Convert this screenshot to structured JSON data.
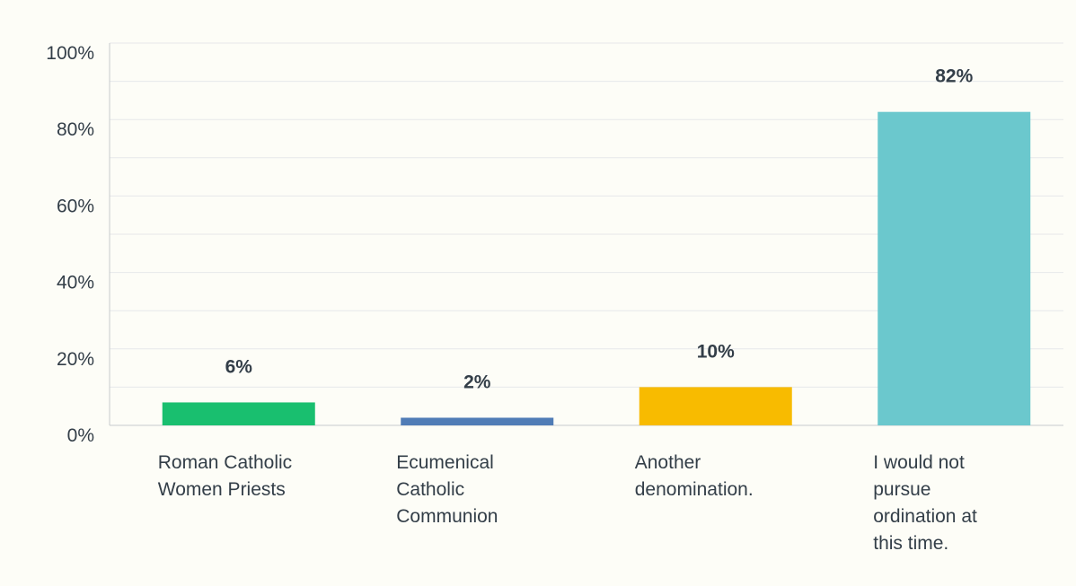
{
  "chart_data": {
    "type": "bar",
    "categories": [
      "Roman Catholic Women Priests",
      "Ecumenical Catholic Communion",
      "Another denomination.",
      "I would not pursue ordination at this time."
    ],
    "category_lines": [
      [
        "Roman Catholic",
        "Women Priests"
      ],
      [
        "Ecumenical",
        "Catholic",
        "Communion"
      ],
      [
        "Another",
        "denomination."
      ],
      [
        "I would not",
        "pursue",
        "ordination at",
        "this time."
      ]
    ],
    "values": [
      6,
      2,
      10,
      82
    ],
    "data_labels": [
      "6%",
      "2%",
      "10%",
      "82%"
    ],
    "colors": [
      "#19bf6f",
      "#507cb6",
      "#f8bb00",
      "#6bc8cd"
    ],
    "ylim": [
      0,
      100
    ],
    "yticks": [
      0,
      20,
      40,
      60,
      80,
      100
    ],
    "ytick_labels": [
      "0%",
      "20%",
      "40%",
      "60%",
      "80%",
      "100%"
    ],
    "minor_gridlines": [
      10,
      30,
      50,
      70,
      90
    ],
    "grid": true,
    "title": "",
    "xlabel": "",
    "ylabel": ""
  }
}
